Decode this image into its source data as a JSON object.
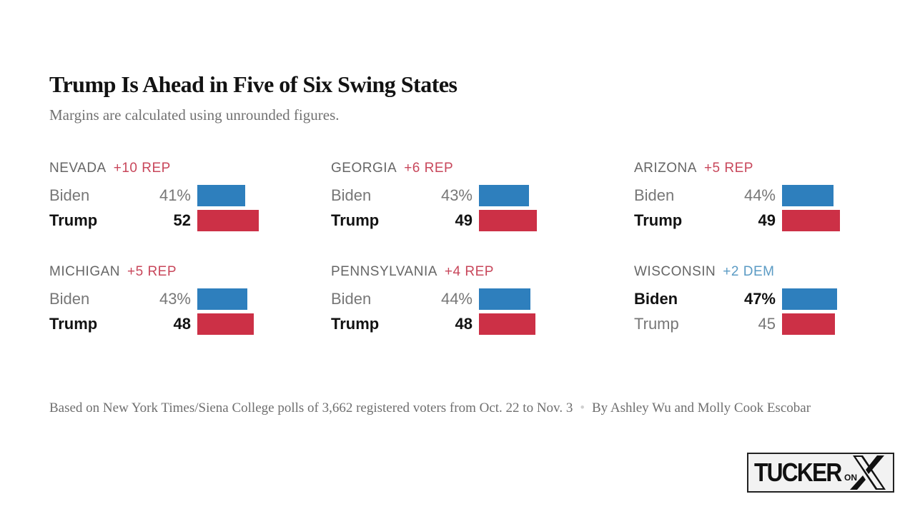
{
  "header": {
    "title": "Trump Is Ahead in Five of Six Swing States",
    "subtitle": "Margins are calculated using unrounded figures."
  },
  "chart_data": {
    "type": "bar",
    "title": "Trump Is Ahead in Five of Six Swing States",
    "subtitle": "Margins are calculated using unrounded figures.",
    "series_names": [
      "Biden",
      "Trump"
    ],
    "colors": {
      "dem": "#2e7fbd",
      "rep": "#cc3046",
      "rep_text": "#c8475b",
      "dem_text": "#5b9bc4"
    },
    "states": [
      {
        "name": "NEVADA",
        "margin": "+10 REP",
        "lean": "rep",
        "candidates": [
          {
            "name": "Biden",
            "label": "41%",
            "value": 41,
            "party": "dem",
            "leader": false
          },
          {
            "name": "Trump",
            "label": "52",
            "value": 52,
            "party": "rep",
            "leader": true
          }
        ]
      },
      {
        "name": "GEORGIA",
        "margin": "+6 REP",
        "lean": "rep",
        "candidates": [
          {
            "name": "Biden",
            "label": "43%",
            "value": 43,
            "party": "dem",
            "leader": false
          },
          {
            "name": "Trump",
            "label": "49",
            "value": 49,
            "party": "rep",
            "leader": true
          }
        ]
      },
      {
        "name": "ARIZONA",
        "margin": "+5 REP",
        "lean": "rep",
        "candidates": [
          {
            "name": "Biden",
            "label": "44%",
            "value": 44,
            "party": "dem",
            "leader": false
          },
          {
            "name": "Trump",
            "label": "49",
            "value": 49,
            "party": "rep",
            "leader": true
          }
        ]
      },
      {
        "name": "MICHIGAN",
        "margin": "+5 REP",
        "lean": "rep",
        "candidates": [
          {
            "name": "Biden",
            "label": "43%",
            "value": 43,
            "party": "dem",
            "leader": false
          },
          {
            "name": "Trump",
            "label": "48",
            "value": 48,
            "party": "rep",
            "leader": true
          }
        ]
      },
      {
        "name": "PENNSYLVANIA",
        "margin": "+4 REP",
        "lean": "rep",
        "candidates": [
          {
            "name": "Biden",
            "label": "44%",
            "value": 44,
            "party": "dem",
            "leader": false
          },
          {
            "name": "Trump",
            "label": "48",
            "value": 48,
            "party": "rep",
            "leader": true
          }
        ]
      },
      {
        "name": "WISCONSIN",
        "margin": "+2 DEM",
        "lean": "dem",
        "candidates": [
          {
            "name": "Biden",
            "label": "47%",
            "value": 47,
            "party": "dem",
            "leader": true
          },
          {
            "name": "Trump",
            "label": "45",
            "value": 45,
            "party": "rep",
            "leader": false
          }
        ]
      }
    ]
  },
  "footer": {
    "source": "Based on New York Times/Siena College polls of 3,662 registered voters from Oct. 22 to Nov. 3",
    "separator": "•",
    "byline": "By Ashley Wu and Molly Cook Escobar"
  },
  "logo": {
    "text": "TUCKER",
    "on": "ON",
    "x_icon": "x-logo-icon"
  }
}
